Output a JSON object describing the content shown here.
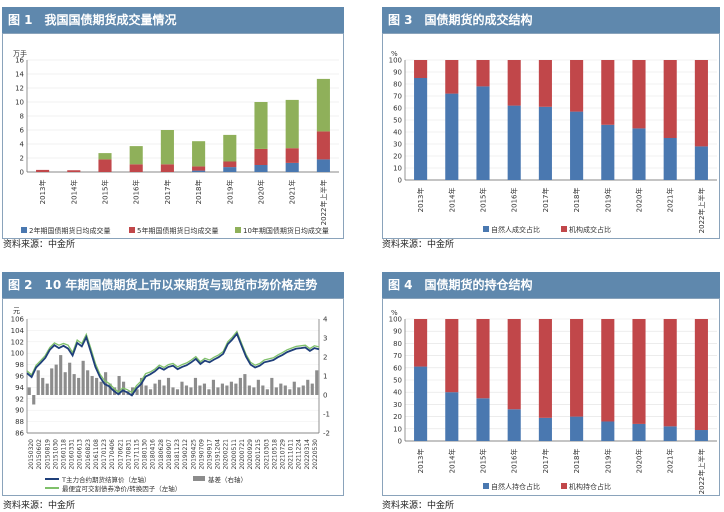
{
  "source_note": "资料来源：中金所",
  "panels": {
    "fig1": {
      "title": "图 1　我国国债期货成交量情况"
    },
    "fig2": {
      "title": "图 2　10 年期国债期货上市以来期货与现货市场价格走势"
    },
    "fig3": {
      "title": "图 3　国债期货的成交结构"
    },
    "fig4": {
      "title": "图 4　国债期货的持仓结构"
    }
  },
  "colors": {
    "header": "#5f88ad",
    "blue": "#4a78b0",
    "red": "#c1474a",
    "green": "#8fb05a",
    "gray": "#8c8c8c",
    "darkblue": "#1f3f7a",
    "lightgreen": "#7fc06a"
  },
  "chart_data": [
    {
      "id": "fig1",
      "type": "bar",
      "stacked": true,
      "ylabel": "万手",
      "ylim": [
        0,
        16
      ],
      "yticks": [
        0,
        2,
        4,
        6,
        8,
        10,
        12,
        14,
        16
      ],
      "categories": [
        "2013年",
        "2014年",
        "2015年",
        "2016年",
        "2017年",
        "2018年",
        "2019年",
        "2020年",
        "2021年",
        "2022年上半年"
      ],
      "series": [
        {
          "name": "2年期国债期货日均成交量",
          "color": "#4a78b0",
          "values": [
            0,
            0,
            0,
            0,
            0,
            0.2,
            0.7,
            1.0,
            1.3,
            1.8
          ]
        },
        {
          "name": "5年期国债期货日均成交量",
          "color": "#c1474a",
          "values": [
            0.3,
            0.25,
            1.8,
            1.1,
            1.1,
            0.6,
            0.8,
            2.3,
            2.1,
            4.0
          ]
        },
        {
          "name": "10年期国债期货日均成交量",
          "color": "#8fb05a",
          "values": [
            0,
            0,
            0.9,
            2.6,
            4.9,
            3.6,
            3.8,
            6.7,
            6.9,
            7.5
          ]
        }
      ],
      "legend_position": "bottom"
    },
    {
      "id": "fig2",
      "type": "line",
      "ylabel_left": "元",
      "ylim_left": [
        86,
        106
      ],
      "yticks_left": [
        86,
        88,
        90,
        92,
        94,
        96,
        98,
        100,
        102,
        104,
        106
      ],
      "ylim_right": [
        -2,
        4
      ],
      "yticks_right": [
        -2,
        -1,
        0,
        1,
        2,
        3,
        4
      ],
      "x_ticks": [
        "20150320",
        "20150602",
        "20150819",
        "20151030",
        "20160118",
        "20160331",
        "20160613",
        "20160823",
        "20161108",
        "20170123",
        "20170406",
        "20170621",
        "20170831",
        "20171115",
        "20180130",
        "20180416",
        "20180628",
        "20180907",
        "20181123",
        "20190212",
        "20190425",
        "20190709",
        "20190917",
        "20191204",
        "20200221",
        "20200511",
        "20200721",
        "20200929",
        "20201215",
        "20210303",
        "20210518",
        "20210729",
        "20211011",
        "20211224",
        "20220314",
        "20220530"
      ],
      "series": [
        {
          "name": "T主力合约期货结算价（左轴）",
          "axis": "left",
          "color": "#1f3f7a",
          "values": [
            96.5,
            95.8,
            97.5,
            98.3,
            99.2,
            100.6,
            101.4,
            100.9,
            101.3,
            100.8,
            99.6,
            101.8,
            101.2,
            102.8,
            100.2,
            97.6,
            95.8,
            94.6,
            94.2,
            93.4,
            92.8,
            93.5,
            93.1,
            92.6,
            93.8,
            94.6,
            95.9,
            96.3,
            96.8,
            97.5,
            97.1,
            97.6,
            97.8,
            97.2,
            97.6,
            97.9,
            98.4,
            99.0,
            98.1,
            98.7,
            98.4,
            98.9,
            99.3,
            99.9,
            101.6,
            102.4,
            103.4,
            101.4,
            99.4,
            98.0,
            97.5,
            97.8,
            98.4,
            98.6,
            98.8,
            99.3,
            99.7,
            100.2,
            100.5,
            100.8,
            100.9,
            101.0,
            100.4,
            100.9,
            100.7
          ]
        },
        {
          "name": "最便宜可交割债券净价/转换因子（左轴）",
          "axis": "left",
          "color": "#7fc06a",
          "values": [
            96.9,
            96.2,
            97.9,
            98.7,
            99.6,
            101.0,
            101.8,
            101.4,
            101.7,
            101.4,
            100.1,
            102.3,
            101.7,
            103.3,
            100.8,
            98.2,
            96.3,
            95.2,
            94.7,
            93.9,
            93.2,
            93.9,
            93.6,
            93.1,
            94.3,
            95.1,
            96.4,
            96.7,
            97.2,
            97.9,
            97.5,
            98.0,
            98.2,
            97.6,
            98.0,
            98.3,
            98.8,
            99.4,
            98.5,
            99.1,
            98.8,
            99.3,
            99.7,
            100.3,
            102.0,
            102.8,
            103.8,
            101.8,
            99.8,
            98.4,
            97.9,
            98.2,
            98.8,
            99.0,
            99.2,
            99.7,
            100.1,
            100.6,
            100.9,
            101.2,
            101.3,
            101.4,
            100.8,
            101.3,
            101.1
          ]
        },
        {
          "name": "基差（右轴）",
          "axis": "right",
          "color": "#8c8c8c",
          "type": "bar",
          "values": [
            0.4,
            -0.5,
            1.3,
            0.9,
            0.6,
            1.4,
            1.6,
            2.1,
            1.2,
            1.7,
            1.1,
            0.9,
            1.8,
            1.3,
            1.0,
            0.9,
            0.7,
            1.2,
            0.6,
            0.4,
            1.0,
            0.7,
            0.2,
            0.4,
            0.3,
            0.9,
            0.5,
            0.3,
            0.6,
            0.8,
            0.5,
            0.9,
            0.4,
            0.3,
            0.7,
            0.5,
            0.4,
            0.9,
            0.5,
            0.6,
            0.3,
            0.8,
            0.4,
            0.6,
            0.5,
            0.7,
            0.6,
            0.9,
            1.1,
            0.5,
            0.4,
            0.8,
            0.5,
            0.3,
            0.9,
            0.4,
            0.6,
            0.5,
            0.3,
            0.7,
            0.4,
            0.5,
            0.8,
            0.6,
            1.3
          ]
        }
      ],
      "legend_position": "bottom"
    },
    {
      "id": "fig3",
      "type": "bar",
      "stacked": true,
      "ylabel": "%",
      "ylim": [
        0,
        100
      ],
      "yticks": [
        0,
        10,
        20,
        30,
        40,
        50,
        60,
        70,
        80,
        90,
        100
      ],
      "categories": [
        "2013年",
        "2014年",
        "2015年",
        "2016年",
        "2017年",
        "2018年",
        "2019年",
        "2020年",
        "2021年",
        "2022年上半年"
      ],
      "series": [
        {
          "name": "自然人成交占比",
          "color": "#4a78b0",
          "values": [
            85,
            72,
            78,
            62,
            61,
            57,
            46,
            43,
            35,
            28
          ]
        },
        {
          "name": "机构成交占比",
          "color": "#c1474a",
          "values": [
            15,
            28,
            22,
            38,
            39,
            43,
            54,
            57,
            65,
            72
          ]
        }
      ],
      "legend_position": "bottom"
    },
    {
      "id": "fig4",
      "type": "bar",
      "stacked": true,
      "ylabel": "%",
      "ylim": [
        0,
        100
      ],
      "yticks": [
        0,
        10,
        20,
        30,
        40,
        50,
        60,
        70,
        80,
        90,
        100
      ],
      "categories": [
        "2013年",
        "2014年",
        "2015年",
        "2016年",
        "2017年",
        "2018年",
        "2019年",
        "2020年",
        "2021年",
        "2022年上半年"
      ],
      "series": [
        {
          "name": "自然人持仓占比",
          "color": "#4a78b0",
          "values": [
            61,
            40,
            35,
            26,
            19,
            20,
            16,
            14,
            12,
            9
          ]
        },
        {
          "name": "机构持仓占比",
          "color": "#c1474a",
          "values": [
            39,
            60,
            65,
            74,
            81,
            80,
            84,
            86,
            88,
            91
          ]
        }
      ],
      "legend_position": "bottom"
    }
  ]
}
